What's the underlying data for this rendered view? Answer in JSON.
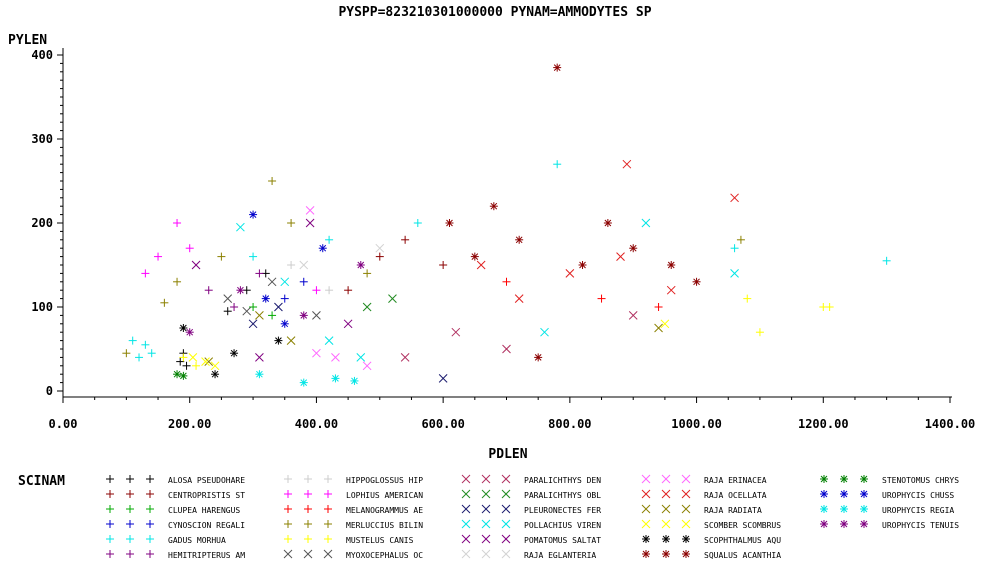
{
  "chart_data": {
    "type": "scatter",
    "title": "PYSPP=823210301000000 PYNAM=AMMODYTES SP",
    "xlabel": "PDLEN",
    "ylabel": "PYLEN",
    "xlim": [
      0,
      1400
    ],
    "ylim": [
      0,
      400
    ],
    "x_ticks": [
      "0.00",
      "200.00",
      "400.00",
      "600.00",
      "800.00",
      "1000.00",
      "1200.00",
      "1400.00"
    ],
    "y_ticks": [
      "0",
      "100",
      "200",
      "300",
      "400"
    ],
    "x_tick_values": [
      0,
      200,
      400,
      600,
      800,
      1000,
      1200,
      1400
    ],
    "y_tick_values": [
      0,
      100,
      200,
      300,
      400
    ],
    "grid": false,
    "legend_title": "SCINAM",
    "legend_position": "bottom",
    "series": [
      {
        "name": "ALOSA PSEUDOHARE",
        "color": "#000000",
        "marker": "plus",
        "points": [
          [
            185,
            35
          ],
          [
            190,
            45
          ],
          [
            195,
            30
          ],
          [
            260,
            95
          ],
          [
            290,
            120
          ],
          [
            320,
            140
          ]
        ]
      },
      {
        "name": "CENTROPRISTIS ST",
        "color": "#8b0000",
        "marker": "plus",
        "points": [
          [
            450,
            120
          ],
          [
            500,
            160
          ],
          [
            540,
            180
          ],
          [
            600,
            150
          ]
        ]
      },
      {
        "name": "CLUPEA HARENGUS",
        "color": "#00aa00",
        "marker": "plus",
        "points": [
          [
            300,
            100
          ],
          [
            330,
            90
          ]
        ]
      },
      {
        "name": "CYNOSCION REGALI",
        "color": "#0000cc",
        "marker": "plus",
        "points": [
          [
            350,
            110
          ],
          [
            380,
            130
          ]
        ]
      },
      {
        "name": "GADUS MORHUA",
        "color": "#00e5e5",
        "marker": "plus",
        "points": [
          [
            110,
            60
          ],
          [
            120,
            40
          ],
          [
            130,
            55
          ],
          [
            140,
            45
          ],
          [
            300,
            160
          ],
          [
            420,
            180
          ],
          [
            560,
            200
          ],
          [
            780,
            270
          ],
          [
            1060,
            170
          ],
          [
            1300,
            155
          ]
        ]
      },
      {
        "name": "HEMITRIPTERUS AM",
        "color": "#800080",
        "marker": "plus",
        "points": [
          [
            230,
            120
          ],
          [
            270,
            100
          ],
          [
            310,
            140
          ]
        ]
      },
      {
        "name": "HIPPOGLOSSUS HIP",
        "color": "#cccccc",
        "marker": "plus",
        "points": [
          [
            360,
            150
          ],
          [
            420,
            120
          ]
        ]
      },
      {
        "name": "LOPHIUS AMERICAN",
        "color": "#ff00ff",
        "marker": "plus",
        "points": [
          [
            130,
            140
          ],
          [
            150,
            160
          ],
          [
            180,
            200
          ],
          [
            200,
            170
          ],
          [
            400,
            120
          ]
        ]
      },
      {
        "name": "MELANOGRAMMUS AE",
        "color": "#ff0000",
        "marker": "plus",
        "points": [
          [
            700,
            130
          ],
          [
            850,
            110
          ],
          [
            940,
            100
          ]
        ]
      },
      {
        "name": "MERLUCCIUS BILIN",
        "color": "#8b8000",
        "marker": "plus",
        "points": [
          [
            100,
            45
          ],
          [
            160,
            105
          ],
          [
            180,
            130
          ],
          [
            250,
            160
          ],
          [
            330,
            250
          ],
          [
            360,
            200
          ],
          [
            480,
            140
          ],
          [
            1070,
            180
          ]
        ]
      },
      {
        "name": "MUSTELUS CANIS",
        "color": "#ffff00",
        "marker": "plus",
        "points": [
          [
            190,
            40
          ],
          [
            210,
            30
          ],
          [
            1080,
            110
          ],
          [
            1100,
            70
          ],
          [
            1200,
            100
          ],
          [
            1210,
            100
          ]
        ]
      },
      {
        "name": "MYOXOCEPHALUS OC",
        "color": "#555555",
        "marker": "x",
        "points": [
          [
            260,
            110
          ],
          [
            290,
            95
          ],
          [
            330,
            130
          ],
          [
            400,
            90
          ]
        ]
      },
      {
        "name": "PARALICHTHYS DEN",
        "color": "#b03060",
        "marker": "x",
        "points": [
          [
            540,
            40
          ],
          [
            620,
            70
          ],
          [
            700,
            50
          ],
          [
            900,
            90
          ]
        ]
      },
      {
        "name": "PARALICHTHYS OBL",
        "color": "#228b22",
        "marker": "x",
        "points": [
          [
            480,
            100
          ],
          [
            520,
            110
          ]
        ]
      },
      {
        "name": "PLEURONECTES FER",
        "color": "#1a1a6e",
        "marker": "x",
        "points": [
          [
            300,
            80
          ],
          [
            340,
            100
          ],
          [
            600,
            15
          ]
        ]
      },
      {
        "name": "POLLACHIUS VIREN",
        "color": "#00e5e5",
        "marker": "x",
        "points": [
          [
            280,
            195
          ],
          [
            350,
            130
          ],
          [
            420,
            60
          ],
          [
            470,
            40
          ],
          [
            760,
            70
          ],
          [
            920,
            200
          ],
          [
            1060,
            140
          ]
        ]
      },
      {
        "name": "POMATOMUS SALTAT",
        "color": "#800080",
        "marker": "x",
        "points": [
          [
            210,
            150
          ],
          [
            310,
            40
          ],
          [
            390,
            200
          ],
          [
            450,
            80
          ]
        ]
      },
      {
        "name": "RAJA EGLANTERIA",
        "color": "#d3d3d3",
        "marker": "x",
        "points": [
          [
            380,
            150
          ],
          [
            500,
            170
          ]
        ]
      },
      {
        "name": "RAJA ERINACEA",
        "color": "#ff66ff",
        "marker": "x",
        "points": [
          [
            400,
            45
          ],
          [
            430,
            40
          ],
          [
            480,
            30
          ],
          [
            390,
            215
          ]
        ]
      },
      {
        "name": "RAJA OCELLATA",
        "color": "#e02020",
        "marker": "x",
        "points": [
          [
            660,
            150
          ],
          [
            720,
            110
          ],
          [
            800,
            140
          ],
          [
            880,
            160
          ],
          [
            960,
            120
          ],
          [
            1060,
            230
          ],
          [
            890,
            270
          ]
        ]
      },
      {
        "name": "RAJA RADIATA",
        "color": "#8b8000",
        "marker": "x",
        "points": [
          [
            230,
            35
          ],
          [
            310,
            90
          ],
          [
            940,
            75
          ],
          [
            360,
            60
          ]
        ]
      },
      {
        "name": "SCOMBER SCOMBRUS",
        "color": "#ffff00",
        "marker": "x",
        "points": [
          [
            205,
            40
          ],
          [
            225,
            35
          ],
          [
            240,
            30
          ],
          [
            950,
            80
          ]
        ]
      },
      {
        "name": "SCOPHTHALMUS AQU",
        "color": "#000000",
        "marker": "asterisk",
        "points": [
          [
            190,
            75
          ],
          [
            240,
            20
          ],
          [
            270,
            45
          ],
          [
            340,
            60
          ]
        ]
      },
      {
        "name": "SQUALUS ACANTHIA",
        "color": "#8b0000",
        "marker": "asterisk",
        "points": [
          [
            610,
            200
          ],
          [
            650,
            160
          ],
          [
            680,
            220
          ],
          [
            720,
            180
          ],
          [
            750,
            40
          ],
          [
            780,
            385
          ],
          [
            820,
            150
          ],
          [
            860,
            200
          ],
          [
            900,
            170
          ],
          [
            960,
            150
          ],
          [
            1000,
            130
          ]
        ]
      },
      {
        "name": "STENOTOMUS CHRYS",
        "color": "#008000",
        "marker": "asterisk",
        "points": [
          [
            180,
            20
          ],
          [
            190,
            18
          ]
        ]
      },
      {
        "name": "UROPHYCIS CHUSS",
        "color": "#0000cc",
        "marker": "asterisk",
        "points": [
          [
            300,
            210
          ],
          [
            320,
            110
          ],
          [
            410,
            170
          ],
          [
            350,
            80
          ]
        ]
      },
      {
        "name": "UROPHYCIS REGIA",
        "color": "#00e5e5",
        "marker": "asterisk",
        "points": [
          [
            310,
            20
          ],
          [
            380,
            10
          ],
          [
            430,
            15
          ],
          [
            460,
            12
          ]
        ]
      },
      {
        "name": "UROPHYCIS TENUIS",
        "color": "#800080",
        "marker": "asterisk",
        "points": [
          [
            200,
            70
          ],
          [
            280,
            120
          ],
          [
            380,
            90
          ],
          [
            470,
            150
          ]
        ]
      }
    ]
  }
}
